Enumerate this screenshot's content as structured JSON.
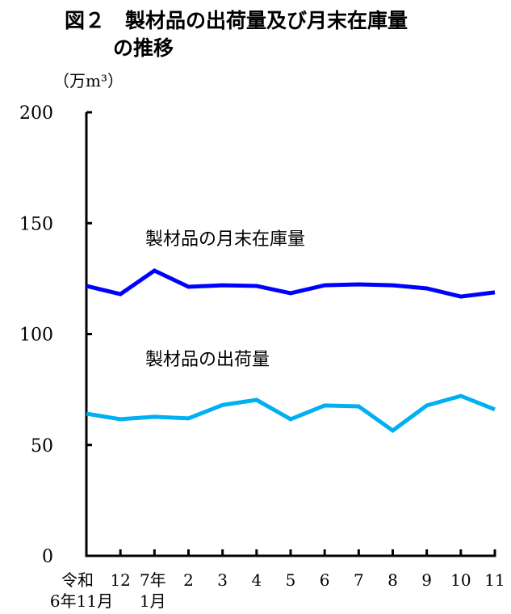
{
  "chart_data": {
    "type": "line",
    "title_line1": "図２　製材品の出荷量及び月末在庫量",
    "title_line2": "の推移",
    "ylabel": "（万m³）",
    "ylim": [
      0,
      200
    ],
    "yticks": [
      "0",
      "50",
      "100",
      "150",
      "200"
    ],
    "categories": [
      {
        "top": "令和",
        "bottom": "6年11月"
      },
      {
        "top": "12",
        "bottom": ""
      },
      {
        "top": "7年",
        "bottom": "1月"
      },
      {
        "top": "2",
        "bottom": ""
      },
      {
        "top": "3",
        "bottom": ""
      },
      {
        "top": "4",
        "bottom": ""
      },
      {
        "top": "5",
        "bottom": ""
      },
      {
        "top": "6",
        "bottom": ""
      },
      {
        "top": "7",
        "bottom": ""
      },
      {
        "top": "8",
        "bottom": ""
      },
      {
        "top": "9",
        "bottom": ""
      },
      {
        "top": "10",
        "bottom": ""
      },
      {
        "top": "11",
        "bottom": ""
      }
    ],
    "series": [
      {
        "name": "製材品の月末在庫量",
        "color": "#0000ff",
        "values": [
          121.7,
          118.0,
          128.6,
          121.3,
          122.0,
          121.7,
          118.4,
          122.0,
          122.4,
          122.0,
          120.6,
          116.9,
          118.8
        ]
      },
      {
        "name": "製材品の出荷量",
        "color": "#00b0f0",
        "values": [
          64.1,
          61.6,
          62.7,
          62.0,
          68.0,
          70.3,
          61.6,
          67.8,
          67.4,
          56.5,
          67.8,
          72.1,
          66.0
        ]
      }
    ],
    "grid": false,
    "legend": "inline labels"
  }
}
